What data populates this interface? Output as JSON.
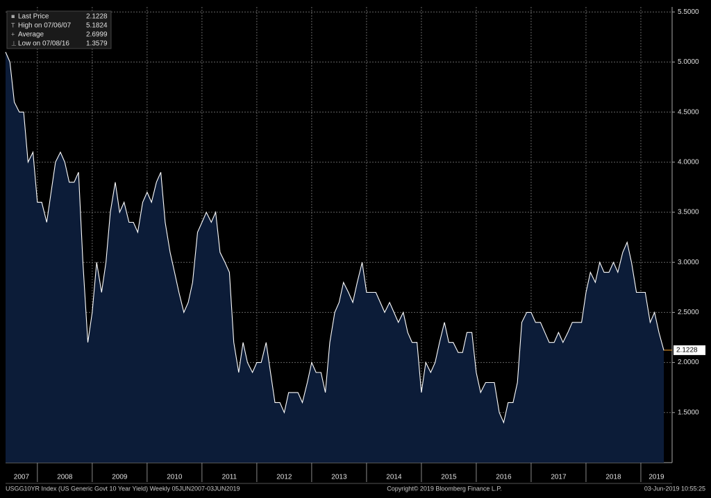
{
  "chart_data": {
    "type": "area",
    "legend": [
      {
        "name": "Last Price",
        "value": 2.1228
      },
      {
        "name": "High on 07/06/07",
        "value": 5.1824
      },
      {
        "name": "Average",
        "value": 2.6999
      },
      {
        "name": "Low on 07/08/16",
        "value": 1.3579
      }
    ],
    "last_price_label": 2.1228,
    "x_labels": [
      2007,
      2008,
      2009,
      2010,
      2011,
      2012,
      2013,
      2014,
      2015,
      2016,
      2017,
      2018,
      2019
    ],
    "xlim": [
      2007.42,
      2019.57
    ],
    "xticks": [
      2008,
      2009,
      2010,
      2011,
      2012,
      2013,
      2014,
      2015,
      2016,
      2017,
      2018,
      2019
    ],
    "ylim": [
      1.0,
      5.55
    ],
    "yticks": [
      {
        "value": 1.5,
        "label": "1.5000"
      },
      {
        "value": 2.0,
        "label": "2.0000"
      },
      {
        "value": 2.5,
        "label": "2.5000"
      },
      {
        "value": 3.0,
        "label": "3.0000"
      },
      {
        "value": 3.5,
        "label": "3.5000"
      },
      {
        "value": 4.0,
        "label": "4.0000"
      },
      {
        "value": 4.5,
        "label": "4.5000"
      },
      {
        "value": 5.0,
        "label": "5.0000"
      },
      {
        "value": 5.5,
        "label": "5.5000"
      }
    ],
    "grid": true,
    "line_color": "#ffffff",
    "fill_color": "#0c1c38",
    "last_color": "#f0a030",
    "x": [
      2007.42,
      2007.5,
      2007.58,
      2007.67,
      2007.75,
      2007.83,
      2007.92,
      2008.0,
      2008.08,
      2008.17,
      2008.25,
      2008.33,
      2008.42,
      2008.5,
      2008.58,
      2008.67,
      2008.75,
      2008.83,
      2008.92,
      2009.0,
      2009.08,
      2009.17,
      2009.25,
      2009.33,
      2009.42,
      2009.5,
      2009.58,
      2009.67,
      2009.75,
      2009.83,
      2009.92,
      2010.0,
      2010.08,
      2010.17,
      2010.25,
      2010.33,
      2010.42,
      2010.5,
      2010.58,
      2010.67,
      2010.75,
      2010.83,
      2010.92,
      2011.0,
      2011.08,
      2011.17,
      2011.25,
      2011.33,
      2011.42,
      2011.5,
      2011.58,
      2011.67,
      2011.75,
      2011.83,
      2011.92,
      2012.0,
      2012.08,
      2012.17,
      2012.25,
      2012.33,
      2012.42,
      2012.5,
      2012.58,
      2012.67,
      2012.75,
      2012.83,
      2012.92,
      2013.0,
      2013.08,
      2013.17,
      2013.25,
      2013.33,
      2013.42,
      2013.5,
      2013.58,
      2013.67,
      2013.75,
      2013.83,
      2013.92,
      2014.0,
      2014.08,
      2014.17,
      2014.25,
      2014.33,
      2014.42,
      2014.5,
      2014.58,
      2014.67,
      2014.75,
      2014.83,
      2014.92,
      2015.0,
      2015.08,
      2015.17,
      2015.25,
      2015.33,
      2015.42,
      2015.5,
      2015.58,
      2015.67,
      2015.75,
      2015.83,
      2015.92,
      2016.0,
      2016.08,
      2016.17,
      2016.25,
      2016.33,
      2016.42,
      2016.5,
      2016.58,
      2016.67,
      2016.75,
      2016.83,
      2016.92,
      2017.0,
      2017.08,
      2017.17,
      2017.25,
      2017.33,
      2017.42,
      2017.5,
      2017.58,
      2017.67,
      2017.75,
      2017.83,
      2017.92,
      2018.0,
      2018.08,
      2018.17,
      2018.25,
      2018.33,
      2018.42,
      2018.5,
      2018.58,
      2018.67,
      2018.75,
      2018.83,
      2018.92,
      2019.0,
      2019.08,
      2019.17,
      2019.25,
      2019.33,
      2019.42
    ],
    "values": [
      5.1,
      5.0,
      4.6,
      4.5,
      4.5,
      4.0,
      4.1,
      3.6,
      3.6,
      3.4,
      3.7,
      4.0,
      4.1,
      4.0,
      3.8,
      3.8,
      3.9,
      3.0,
      2.2,
      2.5,
      3.0,
      2.7,
      3.0,
      3.5,
      3.8,
      3.5,
      3.6,
      3.4,
      3.4,
      3.3,
      3.6,
      3.7,
      3.6,
      3.8,
      3.9,
      3.4,
      3.1,
      2.9,
      2.7,
      2.5,
      2.6,
      2.8,
      3.3,
      3.4,
      3.5,
      3.4,
      3.5,
      3.1,
      3.0,
      2.9,
      2.2,
      1.9,
      2.2,
      2.0,
      1.9,
      2.0,
      2.0,
      2.2,
      1.9,
      1.6,
      1.6,
      1.5,
      1.7,
      1.7,
      1.7,
      1.6,
      1.8,
      2.0,
      1.9,
      1.9,
      1.7,
      2.2,
      2.5,
      2.6,
      2.8,
      2.7,
      2.6,
      2.8,
      3.0,
      2.7,
      2.7,
      2.7,
      2.6,
      2.5,
      2.6,
      2.5,
      2.4,
      2.5,
      2.3,
      2.2,
      2.2,
      1.7,
      2.0,
      1.9,
      2.0,
      2.2,
      2.4,
      2.2,
      2.2,
      2.1,
      2.1,
      2.3,
      2.3,
      1.9,
      1.7,
      1.8,
      1.8,
      1.8,
      1.5,
      1.4,
      1.6,
      1.6,
      1.8,
      2.4,
      2.5,
      2.5,
      2.4,
      2.4,
      2.3,
      2.2,
      2.2,
      2.3,
      2.2,
      2.3,
      2.4,
      2.4,
      2.4,
      2.7,
      2.9,
      2.8,
      3.0,
      2.9,
      2.9,
      3.0,
      2.9,
      3.1,
      3.2,
      3.0,
      2.7,
      2.7,
      2.7,
      2.4,
      2.5,
      2.3,
      2.12
    ],
    "footer_left": "USGG10YR Index (US Generic Govt 10 Year Yield)  Weekly 05JUN2007-03JUN2019",
    "footer_center": "Copyright© 2019 Bloomberg Finance L.P.",
    "footer_right": "03-Jun-2019 10:55:25"
  }
}
